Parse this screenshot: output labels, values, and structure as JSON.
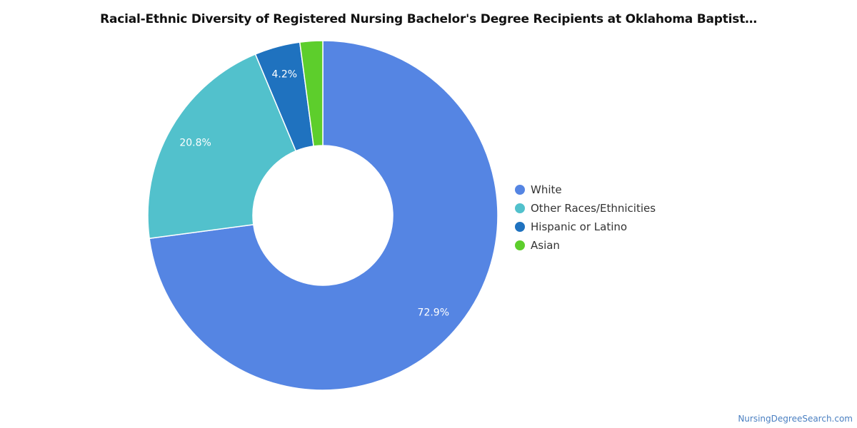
{
  "chart_data": {
    "type": "pie",
    "title": "Racial-Ethnic Diversity of Registered Nursing Bachelor's Degree Recipients at Oklahoma Baptist…",
    "donut": true,
    "legend_position": "right",
    "slices": [
      {
        "name": "White",
        "value": 72.9,
        "label": "72.9%",
        "color": "#5585e3"
      },
      {
        "name": "Other Races/Ethnicities",
        "value": 20.8,
        "label": "20.8%",
        "color": "#52c1cc"
      },
      {
        "name": "Hispanic or Latino",
        "value": 4.2,
        "label": "4.2%",
        "color": "#1f72bf"
      },
      {
        "name": "Asian",
        "value": 2.1,
        "label": "",
        "color": "#5dce2c"
      }
    ]
  },
  "credit": "NursingDegreeSearch.com"
}
